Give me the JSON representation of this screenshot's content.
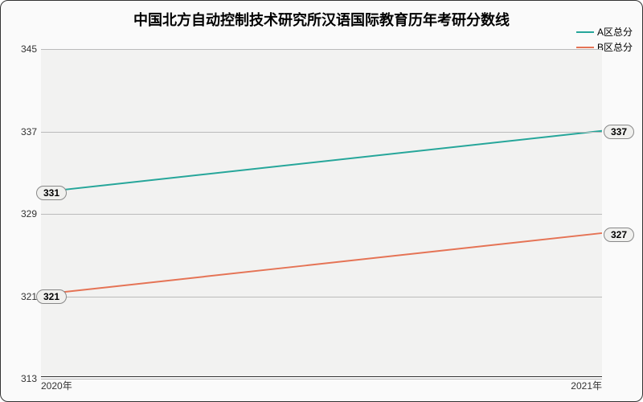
{
  "chart": {
    "type": "line",
    "title": "中国北方自动控制技术研究所汉语国际教育历年考研分数线",
    "title_fontsize": 18,
    "background_color": "#fafafa",
    "plot_background_color": "#f2f2f1",
    "grid_color": "#bbbbbb",
    "border_color": "#333333",
    "x_categories": [
      "2020年",
      "2021年"
    ],
    "ylim": [
      313,
      345
    ],
    "yticks": [
      313,
      321,
      329,
      337,
      345
    ],
    "label_fontsize": 12,
    "series": [
      {
        "name": "A区总分",
        "color": "#26a69a",
        "values": [
          331,
          337
        ],
        "line_width": 2
      },
      {
        "name": "B区总分",
        "color": "#e57355",
        "values": [
          321,
          327
        ],
        "line_width": 2
      }
    ],
    "legend_position": "top-right"
  }
}
